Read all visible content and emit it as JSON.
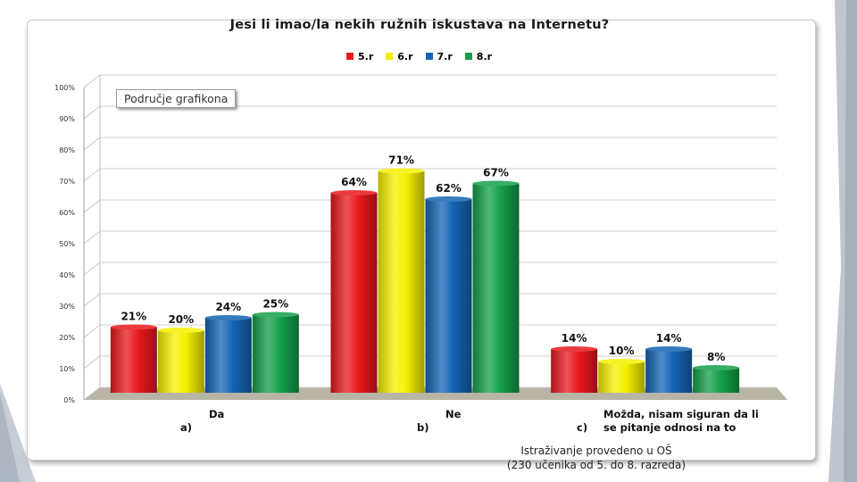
{
  "chart_data": {
    "type": "bar",
    "title": "Jesi li imao/la nekih ružnih iskustava na Internetu?",
    "plot_area_label": "Područje grafikona",
    "ylim": [
      0,
      100
    ],
    "ytick_labels": [
      "0%",
      "10%",
      "20%",
      "30%",
      "40%",
      "50%",
      "60%",
      "70%",
      "80%",
      "90%",
      "100%"
    ],
    "categories": [
      {
        "marker": "a)",
        "text": "Da"
      },
      {
        "marker": "b)",
        "text": "Ne"
      },
      {
        "marker": "c)",
        "text": "Možda, nisam siguran da li\nse pitanje odnosi na to"
      }
    ],
    "series": [
      {
        "name": "5.r",
        "color": "#e8181c",
        "values": [
          21,
          64,
          14
        ],
        "labels": [
          "21%",
          "64%",
          "14%"
        ]
      },
      {
        "name": "6.r",
        "color": "#f5f000",
        "values": [
          20,
          71,
          10
        ],
        "labels": [
          "20%",
          "71%",
          "10%"
        ]
      },
      {
        "name": "7.r",
        "color": "#1464b4",
        "values": [
          24,
          62,
          14
        ],
        "labels": [
          "24%",
          "62%",
          "14%"
        ]
      },
      {
        "name": "8.r",
        "color": "#13a04a",
        "values": [
          25,
          67,
          8
        ],
        "labels": [
          "25%",
          "67%",
          "8%"
        ]
      }
    ],
    "grid": true,
    "legend_position": "top"
  },
  "footnote": {
    "line1": "Istraživanje provedeno u OŠ",
    "line2": "(230 učenika od 5. do 8. razreda)"
  }
}
